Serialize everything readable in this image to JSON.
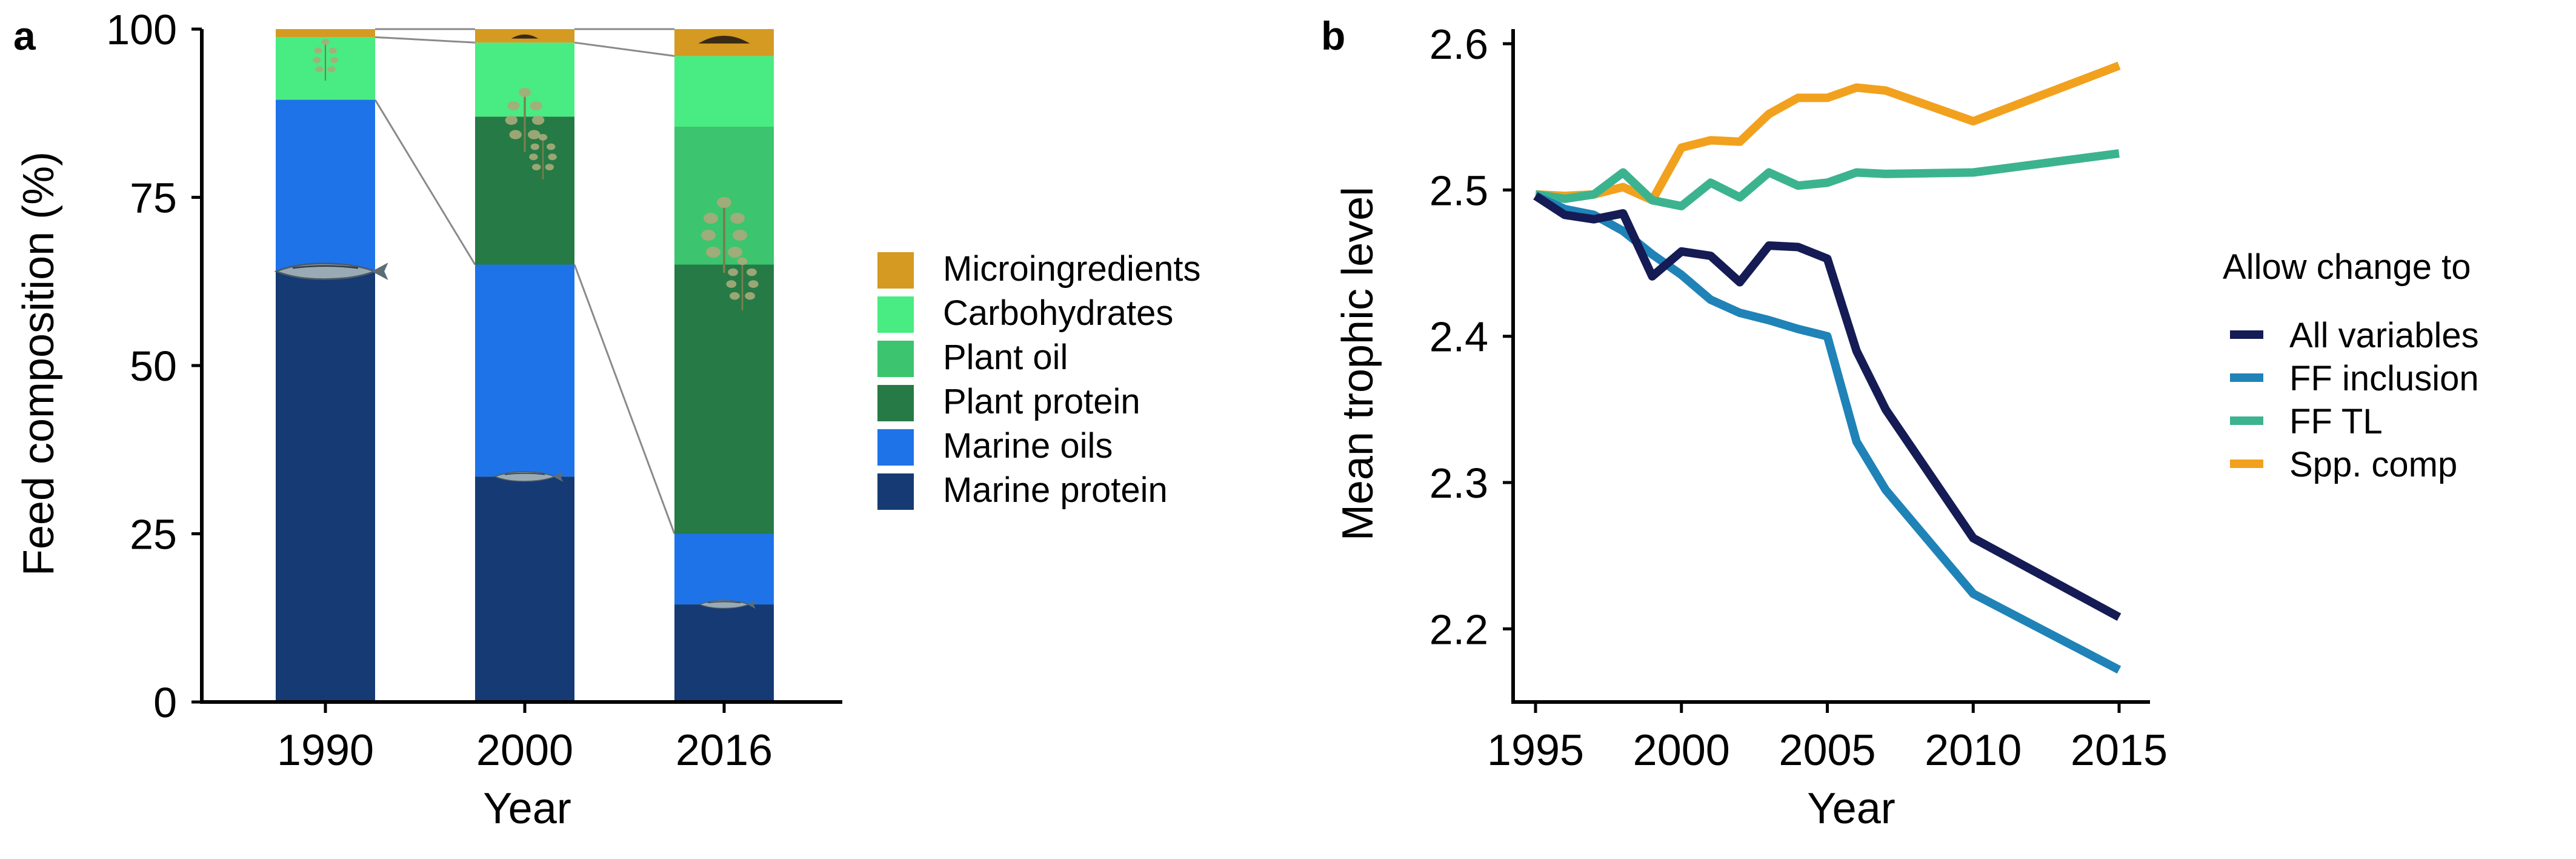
{
  "colors": {
    "axis": "#000000",
    "connector": "#8a8a8a",
    "fish_body": "#9aaab4",
    "plant_leaf": "#a9ab7a"
  },
  "chart_data": [
    {
      "type": "bar",
      "stacked": true,
      "panel_label": "a",
      "xlabel": "Year",
      "ylabel": "Feed composition (%)",
      "ylim": [
        0,
        100
      ],
      "y_ticks": [
        "0",
        "25",
        "50",
        "75",
        "100"
      ],
      "categories": [
        "1990",
        "2000",
        "2016"
      ],
      "series": [
        {
          "name": "Marine protein",
          "color": "#163a73",
          "values": [
            64,
            33.5,
            14.5
          ]
        },
        {
          "name": "Marine oils",
          "color": "#1e73e8",
          "values": [
            25.5,
            31.5,
            10.5
          ]
        },
        {
          "name": "Plant protein",
          "color": "#267a45",
          "values": [
            0,
            22,
            40
          ]
        },
        {
          "name": "Plant oil",
          "color": "#3cc46e",
          "values": [
            0,
            0,
            20.5
          ]
        },
        {
          "name": "Carbohydrates",
          "color": "#48ec82",
          "values": [
            9.3,
            11,
            10.5
          ]
        },
        {
          "name": "Microingredients",
          "color": "#d49a21",
          "values": [
            1.2,
            2,
            4
          ]
        }
      ],
      "legend_position": "right",
      "grid": false
    },
    {
      "type": "line",
      "panel_label": "b",
      "xlabel": "Year",
      "ylabel": "Mean trophic level",
      "xlim": [
        1995,
        2015
      ],
      "ylim": [
        2.15,
        2.61
      ],
      "x_ticks": [
        "1995",
        "2000",
        "2005",
        "2010",
        "2015"
      ],
      "y_ticks": [
        "2.2",
        "2.3",
        "2.4",
        "2.5",
        "2.6"
      ],
      "legend_title": "Allow change to",
      "legend_position": "right",
      "grid": false,
      "series": [
        {
          "name": "All variables",
          "color": "#151b54",
          "x": [
            1995,
            1996,
            1997,
            1998,
            1999,
            2000,
            2001,
            2002,
            2003,
            2004,
            2005,
            2006,
            2007,
            2010,
            2015
          ],
          "y": [
            2.496,
            2.483,
            2.48,
            2.484,
            2.441,
            2.458,
            2.455,
            2.437,
            2.462,
            2.461,
            2.453,
            2.39,
            2.35,
            2.262,
            2.208
          ]
        },
        {
          "name": "FF inclusion",
          "color": "#1f83b8",
          "x": [
            1995,
            1996,
            1997,
            1998,
            1999,
            2000,
            2001,
            2002,
            2003,
            2004,
            2005,
            2006,
            2007,
            2010,
            2015
          ],
          "y": [
            2.496,
            2.487,
            2.483,
            2.472,
            2.456,
            2.442,
            2.425,
            2.416,
            2.411,
            2.405,
            2.4,
            2.328,
            2.295,
            2.224,
            2.172
          ]
        },
        {
          "name": "FF TL",
          "color": "#3cb38f",
          "x": [
            1995,
            1996,
            1997,
            1998,
            1999,
            2000,
            2001,
            2002,
            2003,
            2004,
            2005,
            2006,
            2007,
            2010,
            2015
          ],
          "y": [
            2.497,
            2.494,
            2.497,
            2.512,
            2.493,
            2.489,
            2.505,
            2.495,
            2.512,
            2.503,
            2.505,
            2.512,
            2.511,
            2.512,
            2.525
          ]
        },
        {
          "name": "Spp. comp",
          "color": "#f2a11e",
          "x": [
            1995,
            1996,
            1997,
            1998,
            1999,
            2000,
            2001,
            2002,
            2003,
            2004,
            2005,
            2006,
            2007,
            2010,
            2015
          ],
          "y": [
            2.497,
            2.496,
            2.497,
            2.502,
            2.493,
            2.529,
            2.534,
            2.533,
            2.552,
            2.563,
            2.563,
            2.57,
            2.568,
            2.547,
            2.585
          ]
        }
      ]
    }
  ]
}
